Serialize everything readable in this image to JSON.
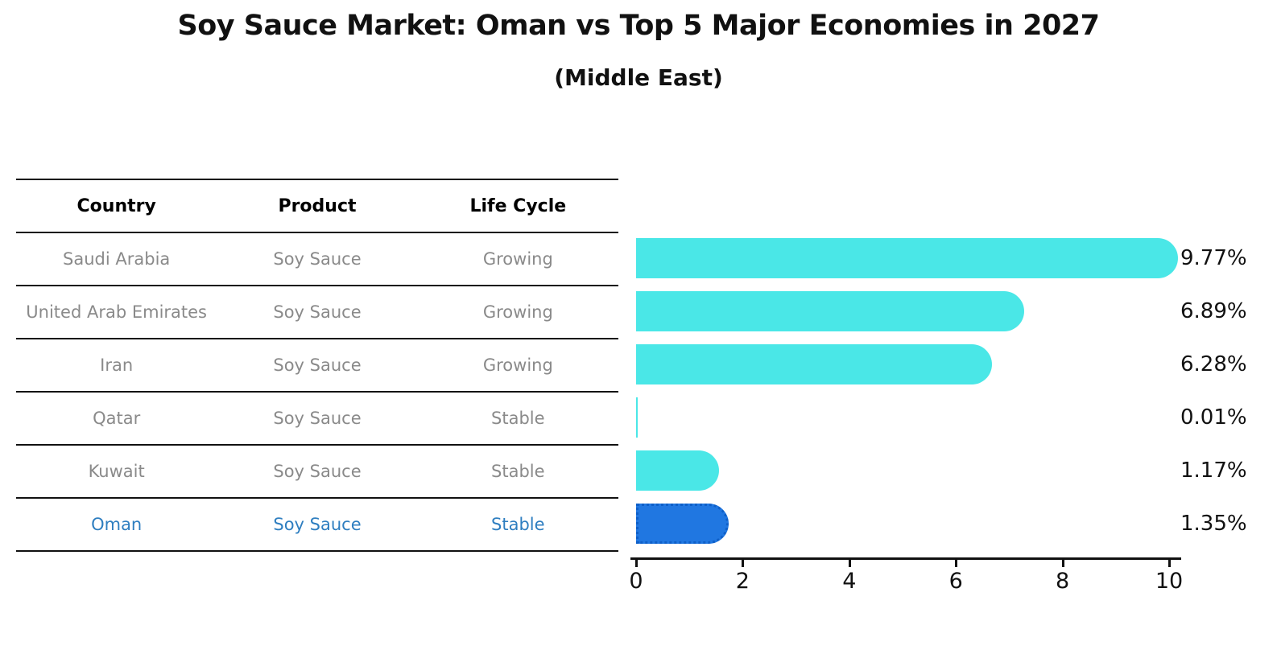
{
  "header": {
    "title": "Soy Sauce Market: Oman vs Top 5 Major Economies in 2027",
    "subtitle": "(Middle East)"
  },
  "table": {
    "headers": [
      "Country",
      "Product",
      "Life Cycle"
    ],
    "rows": [
      {
        "country": "Saudi Arabia",
        "product": "Soy Sauce",
        "life_cycle": "Growing"
      },
      {
        "country": "United Arab Emirates",
        "product": "Soy Sauce",
        "life_cycle": "Growing"
      },
      {
        "country": "Iran",
        "product": "Soy Sauce",
        "life_cycle": "Growing"
      },
      {
        "country": "Qatar",
        "product": "Soy Sauce",
        "life_cycle": "Stable"
      },
      {
        "country": "Kuwait",
        "product": "Soy Sauce",
        "life_cycle": "Stable"
      },
      {
        "country": "Oman",
        "product": "Soy Sauce",
        "life_cycle": "Stable"
      }
    ],
    "highlighted_row": "Oman"
  },
  "chart_data": {
    "type": "bar",
    "orientation": "horizontal",
    "title": "Soy Sauce Market: Oman vs Top 5 Major Economies in 2027",
    "subtitle": "(Middle East)",
    "categories": [
      "Saudi Arabia",
      "United Arab Emirates",
      "Iran",
      "Qatar",
      "Kuwait",
      "Oman"
    ],
    "values": [
      9.77,
      6.89,
      6.28,
      0.01,
      1.17,
      1.35
    ],
    "value_labels": [
      "9.77%",
      "6.89%",
      "6.28%",
      "0.01%",
      "1.17%",
      "1.35%"
    ],
    "x_tick_labels": [
      "0",
      "2",
      "4",
      "6",
      "8",
      "10"
    ],
    "xlim": [
      0,
      10
    ],
    "grid": false,
    "legend": "none",
    "highlight_index": 5,
    "colors": {
      "bar": "#4AE7E7",
      "highlight_bar": "#2077E1",
      "highlight_border": "#0E5FC8",
      "highlight_text": "#2E7EC0",
      "row_text": "#8A8A8A",
      "header_text": "#000000",
      "axis": "#111111"
    }
  }
}
